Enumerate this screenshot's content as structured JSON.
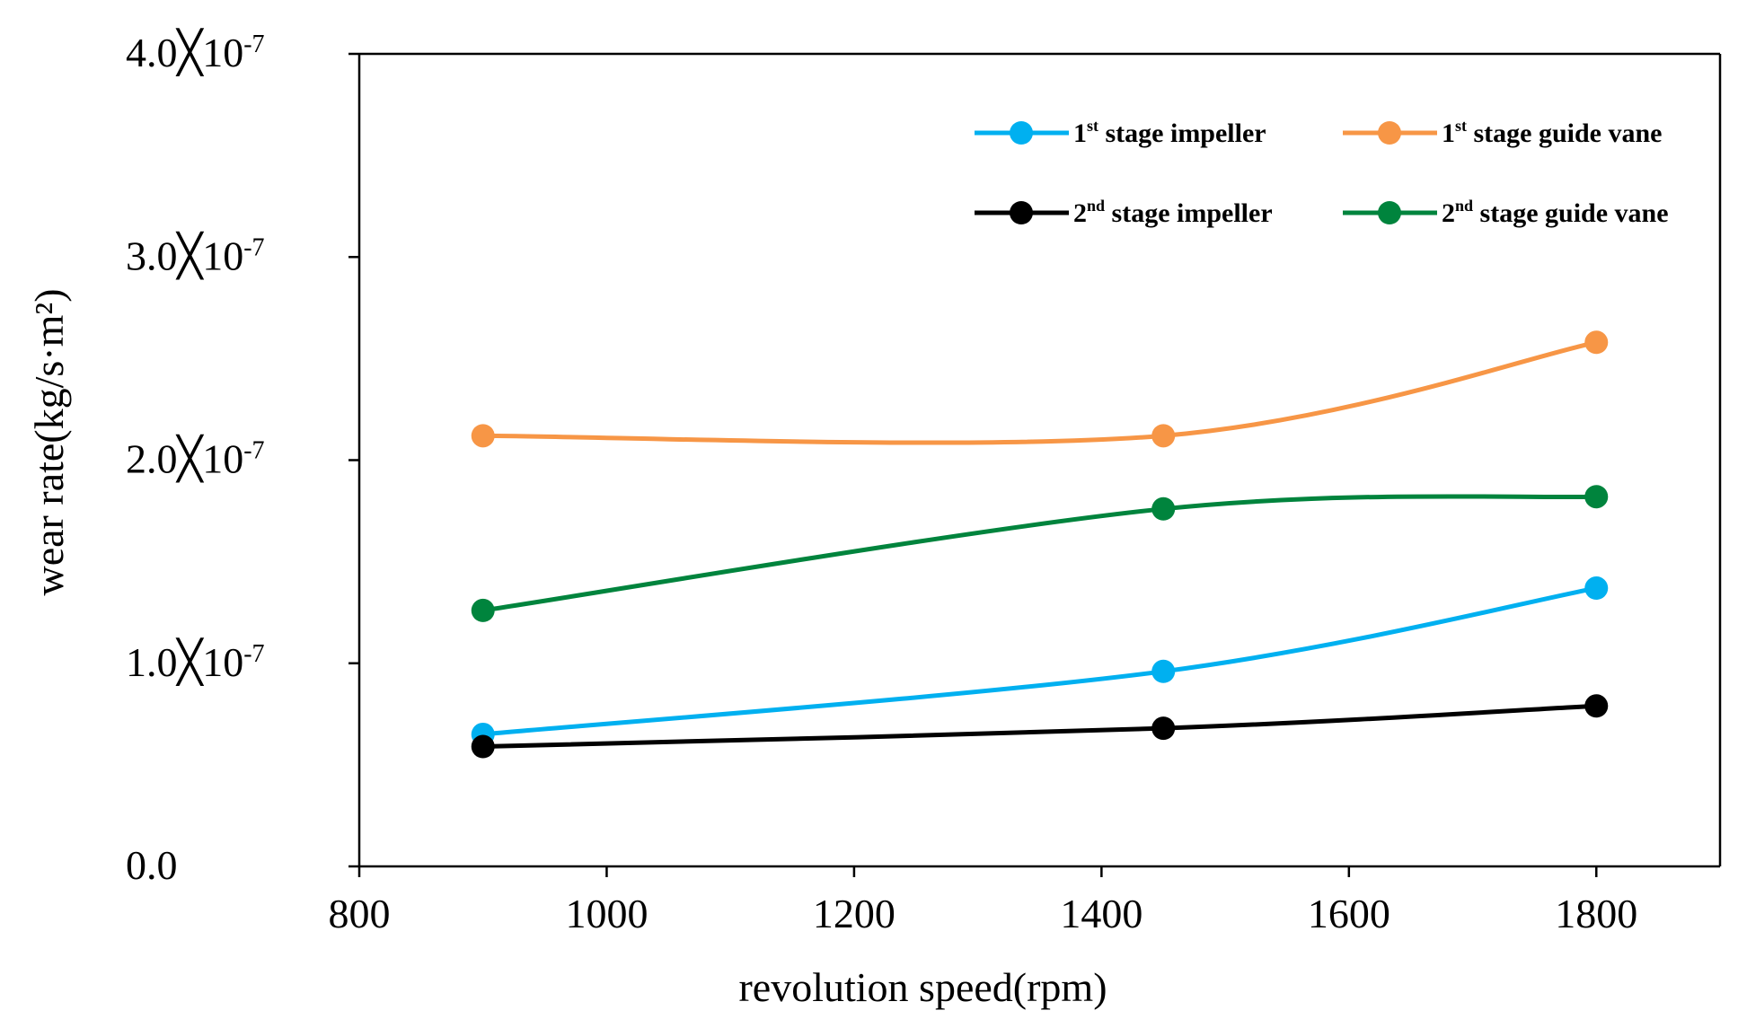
{
  "chart_data": {
    "type": "line",
    "title": "",
    "xlabel": "revolution speed(rpm)",
    "ylabel": "wear rate(kg/s·m²)",
    "xlim": [
      800,
      1900
    ],
    "ylim": [
      0,
      4e-07
    ],
    "x_ticks": [
      800,
      1000,
      1200,
      1400,
      1600,
      1800
    ],
    "y_ticks": [
      {
        "value": 0,
        "mantissa": "0.0",
        "exponent": ""
      },
      {
        "value": 1e-07,
        "mantissa": "1.0╳",
        "base": "10",
        "exponent": "-7"
      },
      {
        "value": 2e-07,
        "mantissa": "2.0╳",
        "base": "10",
        "exponent": "-7"
      },
      {
        "value": 3e-07,
        "mantissa": "3.0╳",
        "base": "10",
        "exponent": "-7"
      },
      {
        "value": 4e-07,
        "mantissa": "4.0╳",
        "base": "10",
        "exponent": "-7"
      }
    ],
    "grid": false,
    "legend_position": "top-right",
    "series": [
      {
        "name": "1st stage impeller",
        "label_prefix": "1",
        "label_sup": "st",
        "label_rest": " stage impeller",
        "color": "#00b0f0",
        "x": [
          900,
          1450,
          1800
        ],
        "values": [
          6.5e-08,
          9.6e-08,
          1.37e-07
        ]
      },
      {
        "name": "1st stage guide vane",
        "label_prefix": "1",
        "label_sup": "st",
        "label_rest": " stage guide vane",
        "color": "#f79646",
        "x": [
          900,
          1450,
          1800
        ],
        "values": [
          2.12e-07,
          2.12e-07,
          2.58e-07
        ]
      },
      {
        "name": "2nd stage impeller",
        "label_prefix": "2",
        "label_sup": "nd",
        "label_rest": " stage impeller",
        "color": "#000000",
        "x": [
          900,
          1450,
          1800
        ],
        "values": [
          5.9e-08,
          6.8e-08,
          7.9e-08
        ]
      },
      {
        "name": "2nd stage guide vane",
        "label_prefix": "2",
        "label_sup": "nd",
        "label_rest": " stage guide vane",
        "color": "#00843d",
        "x": [
          900,
          1450,
          1800
        ],
        "values": [
          1.26e-07,
          1.76e-07,
          1.82e-07
        ]
      }
    ]
  }
}
